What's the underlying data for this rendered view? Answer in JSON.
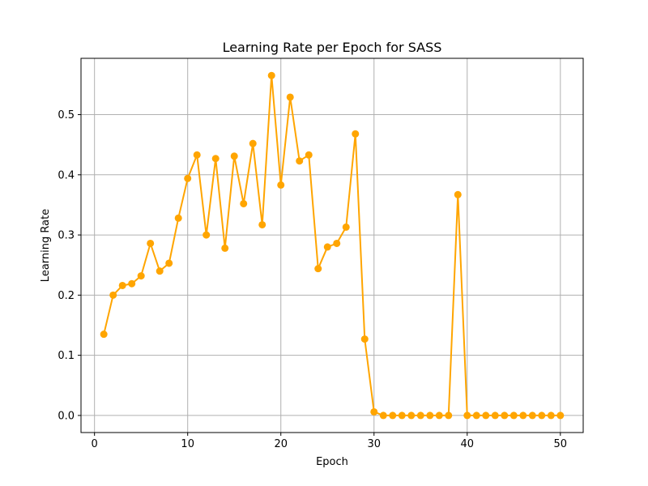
{
  "chart_data": {
    "type": "line",
    "title": "Learning Rate per Epoch for SASS",
    "xlabel": "Epoch",
    "ylabel": "Learning Rate",
    "xlim": [
      -1.45,
      52.45
    ],
    "ylim": [
      -0.0284,
      0.5936
    ],
    "xticks": [
      0,
      10,
      20,
      30,
      40,
      50
    ],
    "yticks": [
      0.0,
      0.1,
      0.2,
      0.3,
      0.4,
      0.5
    ],
    "xtick_labels": [
      "0",
      "10",
      "20",
      "30",
      "40",
      "50"
    ],
    "ytick_labels": [
      "0.0",
      "0.1",
      "0.2",
      "0.3",
      "0.4",
      "0.5"
    ],
    "grid": true,
    "color": "#ffa500",
    "marker": "circle",
    "series": [
      {
        "x": [
          1,
          2,
          3,
          4,
          5,
          6,
          7,
          8,
          9,
          10,
          11,
          12,
          13,
          14,
          15,
          16,
          17,
          18,
          19,
          20,
          21,
          22,
          23,
          24,
          25,
          26,
          27,
          28,
          29,
          30,
          31,
          32,
          33,
          34,
          35,
          36,
          37,
          38,
          39,
          40,
          41,
          42,
          43,
          44,
          45,
          46,
          47,
          48,
          49,
          50
        ],
        "values": [
          0.135,
          0.2,
          0.216,
          0.219,
          0.232,
          0.286,
          0.24,
          0.253,
          0.328,
          0.394,
          0.433,
          0.3,
          0.427,
          0.278,
          0.431,
          0.352,
          0.452,
          0.317,
          0.565,
          0.383,
          0.529,
          0.423,
          0.433,
          0.244,
          0.28,
          0.286,
          0.313,
          0.468,
          0.127,
          0.006,
          0.0,
          0.0,
          0.0,
          0.0,
          0.0,
          0.0,
          0.0,
          0.0,
          0.367,
          0.0,
          0.0,
          0.0,
          0.0,
          0.0,
          0.0,
          0.0,
          0.0,
          0.0,
          0.0,
          0.0
        ]
      }
    ]
  }
}
